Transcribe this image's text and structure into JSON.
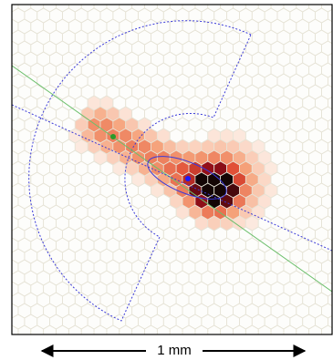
{
  "scale_bar": {
    "label": "1 mm"
  }
}
